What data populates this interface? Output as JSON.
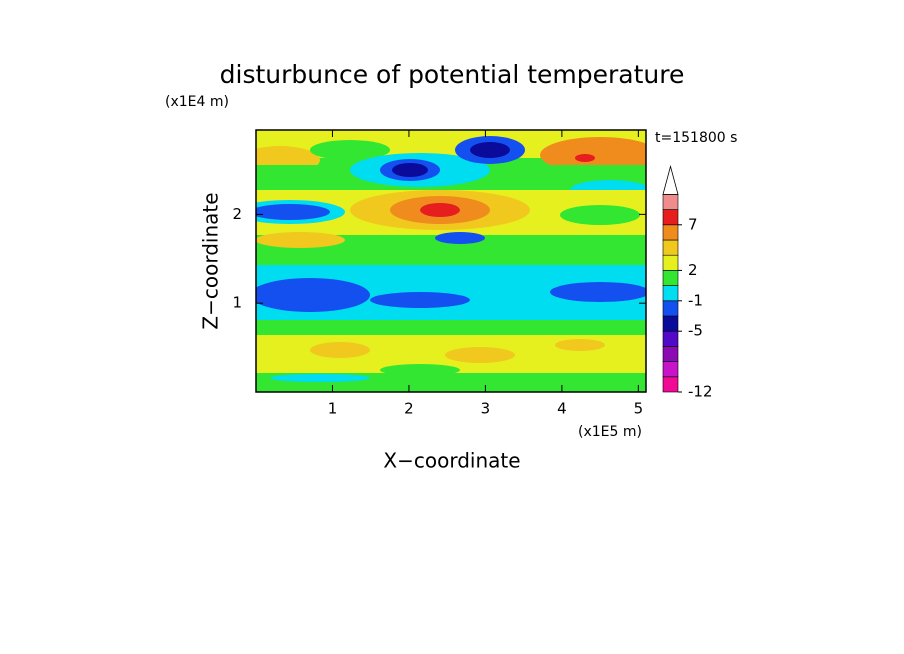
{
  "chart_data": {
    "type": "contour",
    "title": "disturbunce of potential temperature",
    "xlabel": "X−coordinate",
    "ylabel": "Z−coordinate",
    "xunit": "(x1E5 m)",
    "yunit": "(x1E4 m)",
    "annotation": "t=151800 s",
    "xlim": [
      0,
      5.1
    ],
    "ylim": [
      0,
      2.95
    ],
    "xticks": [
      1,
      2,
      3,
      4,
      5
    ],
    "yticks": [
      1,
      2
    ],
    "colorbar": {
      "levels": [
        -12,
        -10,
        -8,
        -6,
        -5,
        -3,
        -1,
        1,
        2,
        3,
        5,
        7,
        9,
        11
      ],
      "colors": [
        "#f00a96",
        "#c814c8",
        "#8c0ab4",
        "#500ac8",
        "#0a0a9b",
        "#1450f0",
        "#00dcf0",
        "#32e632",
        "#e6f01e",
        "#f0c81e",
        "#f08c1e",
        "#e61e1e",
        "#f08c8c"
      ],
      "over_color": "#ffffff",
      "ticks": [
        -12,
        -5,
        -1,
        2,
        7
      ]
    }
  }
}
